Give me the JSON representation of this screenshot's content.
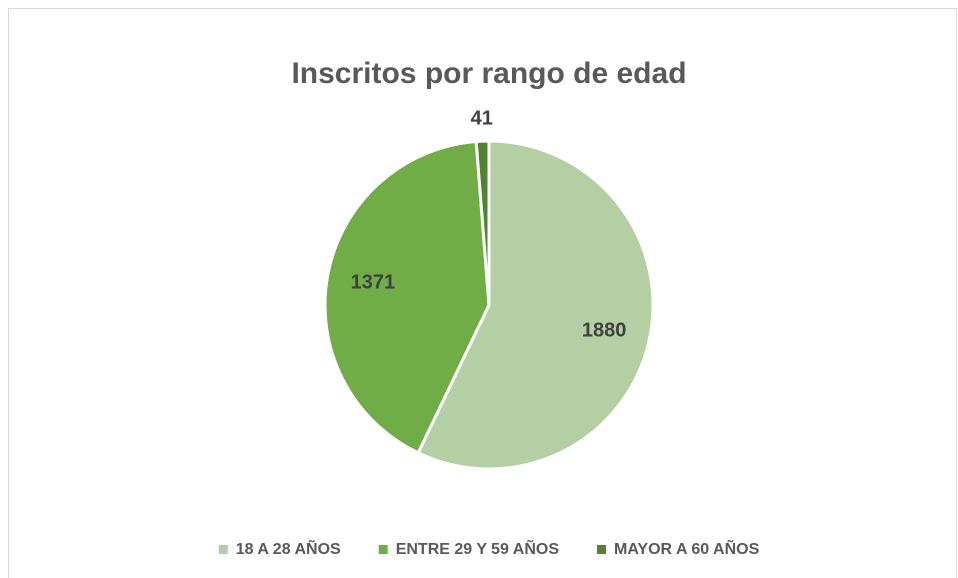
{
  "chart_data": {
    "type": "pie",
    "title": "Inscritos por rango de edad",
    "categories": [
      "18 A 28 AÑOS",
      "ENTRE 29 Y 59 AÑOS",
      "MAYOR A 60 AÑOS"
    ],
    "values": [
      1880,
      1371,
      41
    ],
    "colors": [
      "#b4cfa4",
      "#70ad47",
      "#548235"
    ],
    "legend": "bottom"
  }
}
